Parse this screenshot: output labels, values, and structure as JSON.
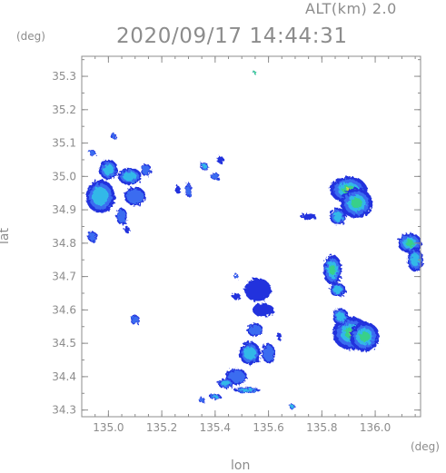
{
  "header": {
    "altitude": "ALT(km) 2.0",
    "timestamp": "2020/09/17 14:44:31",
    "y_unit": "(deg)",
    "x_unit": "(deg)"
  },
  "axes": {
    "xlabel": "lon",
    "ylabel": "lat",
    "xlim": [
      134.9,
      136.17
    ],
    "ylim": [
      34.28,
      35.36
    ],
    "x_ticks": [
      {
        "value": 135.0,
        "label": "135.0"
      },
      {
        "value": 135.2,
        "label": "135.2"
      },
      {
        "value": 135.4,
        "label": "135.4"
      },
      {
        "value": 135.6,
        "label": "135.6"
      },
      {
        "value": 135.8,
        "label": "135.8"
      },
      {
        "value": 136.0,
        "label": "136.0"
      }
    ],
    "y_ticks": [
      {
        "value": 34.3,
        "label": "34.3"
      },
      {
        "value": 34.4,
        "label": "34.4"
      },
      {
        "value": 34.5,
        "label": "34.5"
      },
      {
        "value": 34.6,
        "label": "34.6"
      },
      {
        "value": 34.7,
        "label": "34.7"
      },
      {
        "value": 34.8,
        "label": "34.8"
      },
      {
        "value": 34.9,
        "label": "34.9"
      },
      {
        "value": 35.0,
        "label": "35.0"
      },
      {
        "value": 35.1,
        "label": "35.1"
      },
      {
        "value": 35.2,
        "label": "35.2"
      },
      {
        "value": 35.3,
        "label": "35.3"
      }
    ],
    "minor_step": 0.05
  },
  "colors": {
    "frame": "#8c8c8c",
    "weak": "#2233dd",
    "low": "#3a6cf0",
    "moderate": "#30b8e8",
    "high": "#38d08a",
    "strong": "#c8e040"
  },
  "echoes": [
    {
      "lon": 135.55,
      "lat": 35.31,
      "rlon": 0.006,
      "rlat": 0.004,
      "core": "high"
    },
    {
      "lon": 135.02,
      "lat": 35.12,
      "rlon": 0.012,
      "rlat": 0.008,
      "core": "low"
    },
    {
      "lon": 134.94,
      "lat": 35.07,
      "rlon": 0.012,
      "rlat": 0.01,
      "core": "low"
    },
    {
      "lon": 135.0,
      "lat": 35.02,
      "rlon": 0.035,
      "rlat": 0.03,
      "core": "moderate"
    },
    {
      "lon": 135.08,
      "lat": 35.0,
      "rlon": 0.045,
      "rlat": 0.025,
      "core": "moderate"
    },
    {
      "lon": 135.14,
      "lat": 35.02,
      "rlon": 0.02,
      "rlat": 0.018,
      "core": "low"
    },
    {
      "lon": 134.97,
      "lat": 34.94,
      "rlon": 0.055,
      "rlat": 0.05,
      "core": "moderate"
    },
    {
      "lon": 135.1,
      "lat": 34.94,
      "rlon": 0.04,
      "rlat": 0.028,
      "core": "low"
    },
    {
      "lon": 135.05,
      "lat": 34.88,
      "rlon": 0.02,
      "rlat": 0.025,
      "core": "low"
    },
    {
      "lon": 134.94,
      "lat": 34.82,
      "rlon": 0.018,
      "rlat": 0.016,
      "core": "low"
    },
    {
      "lon": 135.07,
      "lat": 34.84,
      "rlon": 0.01,
      "rlat": 0.01,
      "core": "weak"
    },
    {
      "lon": 135.26,
      "lat": 34.96,
      "rlon": 0.01,
      "rlat": 0.012,
      "core": "weak"
    },
    {
      "lon": 135.3,
      "lat": 34.96,
      "rlon": 0.012,
      "rlat": 0.022,
      "core": "low"
    },
    {
      "lon": 135.36,
      "lat": 35.03,
      "rlon": 0.015,
      "rlat": 0.012,
      "core": "moderate"
    },
    {
      "lon": 135.4,
      "lat": 35.0,
      "rlon": 0.018,
      "rlat": 0.01,
      "core": "low"
    },
    {
      "lon": 135.42,
      "lat": 35.05,
      "rlon": 0.012,
      "rlat": 0.012,
      "core": "weak"
    },
    {
      "lon": 135.9,
      "lat": 34.96,
      "rlon": 0.07,
      "rlat": 0.04,
      "core": "strong"
    },
    {
      "lon": 135.93,
      "lat": 34.92,
      "rlon": 0.06,
      "rlat": 0.045,
      "core": "high"
    },
    {
      "lon": 135.86,
      "lat": 34.88,
      "rlon": 0.03,
      "rlat": 0.025,
      "core": "moderate"
    },
    {
      "lon": 135.75,
      "lat": 34.88,
      "rlon": 0.03,
      "rlat": 0.01,
      "core": "weak"
    },
    {
      "lon": 136.13,
      "lat": 34.8,
      "rlon": 0.045,
      "rlat": 0.03,
      "core": "high"
    },
    {
      "lon": 136.15,
      "lat": 34.75,
      "rlon": 0.03,
      "rlat": 0.035,
      "core": "moderate"
    },
    {
      "lon": 135.84,
      "lat": 34.72,
      "rlon": 0.035,
      "rlat": 0.045,
      "core": "high"
    },
    {
      "lon": 135.86,
      "lat": 34.66,
      "rlon": 0.03,
      "rlat": 0.02,
      "core": "moderate"
    },
    {
      "lon": 135.56,
      "lat": 34.66,
      "rlon": 0.05,
      "rlat": 0.035,
      "core": "weak"
    },
    {
      "lon": 135.48,
      "lat": 34.64,
      "rlon": 0.015,
      "rlat": 0.01,
      "core": "weak"
    },
    {
      "lon": 135.58,
      "lat": 34.6,
      "rlon": 0.04,
      "rlat": 0.02,
      "core": "weak"
    },
    {
      "lon": 135.55,
      "lat": 34.54,
      "rlon": 0.03,
      "rlat": 0.02,
      "core": "low"
    },
    {
      "lon": 135.53,
      "lat": 34.47,
      "rlon": 0.04,
      "rlat": 0.035,
      "core": "moderate"
    },
    {
      "lon": 135.6,
      "lat": 34.47,
      "rlon": 0.025,
      "rlat": 0.03,
      "core": "low"
    },
    {
      "lon": 135.48,
      "lat": 34.4,
      "rlon": 0.04,
      "rlat": 0.025,
      "core": "low"
    },
    {
      "lon": 135.44,
      "lat": 34.38,
      "rlon": 0.03,
      "rlat": 0.015,
      "core": "moderate"
    },
    {
      "lon": 135.52,
      "lat": 34.36,
      "rlon": 0.05,
      "rlat": 0.008,
      "core": "moderate"
    },
    {
      "lon": 135.4,
      "lat": 34.34,
      "rlon": 0.022,
      "rlat": 0.008,
      "core": "moderate"
    },
    {
      "lon": 135.35,
      "lat": 34.33,
      "rlon": 0.012,
      "rlat": 0.008,
      "core": "low"
    },
    {
      "lon": 135.1,
      "lat": 34.57,
      "rlon": 0.018,
      "rlat": 0.014,
      "core": "low"
    },
    {
      "lon": 135.91,
      "lat": 34.53,
      "rlon": 0.07,
      "rlat": 0.05,
      "core": "strong"
    },
    {
      "lon": 135.96,
      "lat": 34.52,
      "rlon": 0.055,
      "rlat": 0.045,
      "core": "high"
    },
    {
      "lon": 135.87,
      "lat": 34.58,
      "rlon": 0.03,
      "rlat": 0.025,
      "core": "moderate"
    },
    {
      "lon": 135.69,
      "lat": 34.31,
      "rlon": 0.012,
      "rlat": 0.008,
      "core": "moderate"
    },
    {
      "lon": 135.48,
      "lat": 34.7,
      "rlon": 0.008,
      "rlat": 0.008,
      "core": "low"
    },
    {
      "lon": 135.64,
      "lat": 34.52,
      "rlon": 0.008,
      "rlat": 0.012,
      "core": "weak"
    }
  ]
}
